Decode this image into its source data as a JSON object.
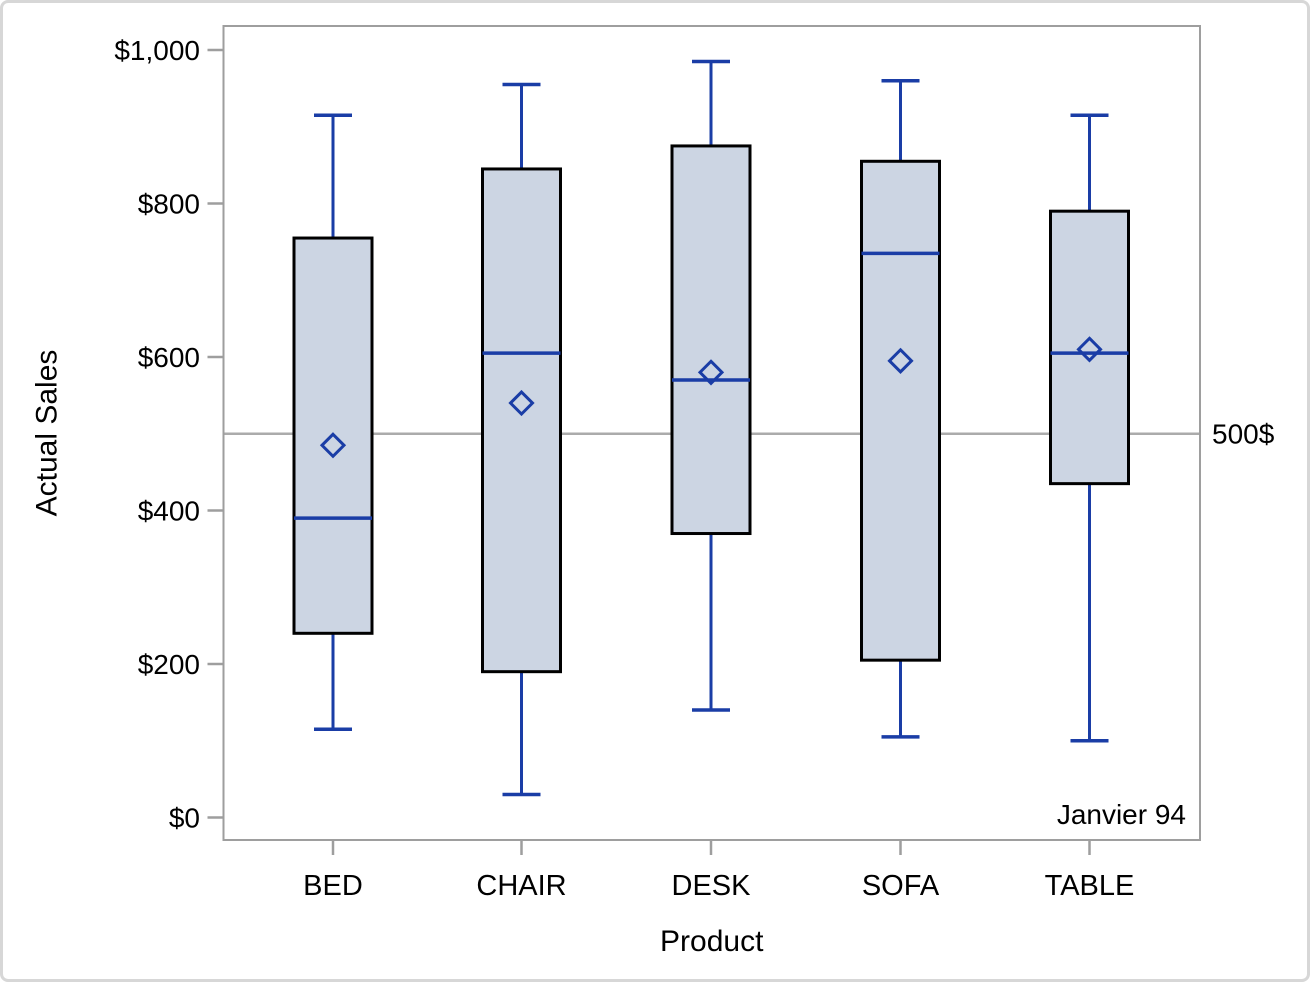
{
  "chart_data": {
    "type": "boxplot",
    "title": "",
    "xlabel": "Product",
    "ylabel": "Actual Sales",
    "categories": [
      "BED",
      "CHAIR",
      "DESK",
      "SOFA",
      "TABLE"
    ],
    "y_axis": {
      "min": 0,
      "max": 1000,
      "tick_values": [
        0,
        200,
        400,
        600,
        800,
        1000
      ],
      "tick_labels": [
        "$0",
        "$200",
        "$400",
        "$600",
        "$800",
        "$1,000"
      ],
      "grid": false
    },
    "series": [
      {
        "category": "BED",
        "whisker_low": 115,
        "q1": 240,
        "median": 390,
        "mean": 485,
        "q3": 755,
        "whisker_high": 915
      },
      {
        "category": "CHAIR",
        "whisker_low": 30,
        "q1": 190,
        "median": 605,
        "mean": 540,
        "q3": 845,
        "whisker_high": 955
      },
      {
        "category": "DESK",
        "whisker_low": 140,
        "q1": 370,
        "median": 570,
        "mean": 580,
        "q3": 875,
        "whisker_high": 985
      },
      {
        "category": "SOFA",
        "whisker_low": 105,
        "q1": 205,
        "median": 735,
        "mean": 595,
        "q3": 855,
        "whisker_high": 960
      },
      {
        "category": "TABLE",
        "whisker_low": 100,
        "q1": 435,
        "median": 605,
        "mean": 610,
        "q3": 790,
        "whisker_high": 915
      }
    ],
    "reference_line": {
      "value": 500,
      "label": "500$"
    },
    "annotation": {
      "text": "Janvier 94",
      "position": "bottom-right"
    },
    "legend": {
      "visible": false
    }
  },
  "colors": {
    "box_fill": "#ccd5e3",
    "box_border": "#000000",
    "blue_line": "#1a3da6",
    "axis_gray": "#9e9e9e",
    "reference_gray": "#ababab",
    "text": "#000000",
    "outer_border": "#d7d7d7",
    "background": "#ffffff"
  }
}
